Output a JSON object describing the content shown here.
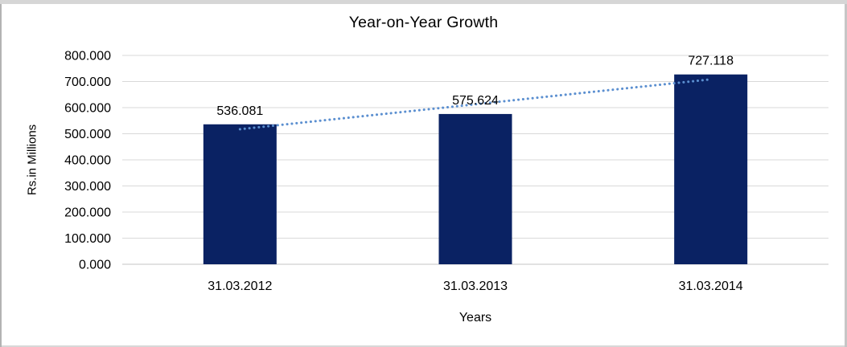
{
  "window": {
    "background": "#FFFFFF",
    "frame_color": "#C9C9C9"
  },
  "chart_data": {
    "type": "bar",
    "title": "Year-on-Year Growth",
    "categories": [
      "31.03.2012",
      "31.03.2013",
      "31.03.2014"
    ],
    "values": [
      536.081,
      575.624,
      727.118
    ],
    "data_labels": [
      "536.081",
      "575.624",
      "727.118"
    ],
    "xlabel": "Years",
    "ylabel": "Rs.in Millions",
    "ylim": [
      0,
      800
    ],
    "ytick_step": 100,
    "ytick_labels": [
      "0.000",
      "100.000",
      "200.000",
      "300.000",
      "400.000",
      "500.000",
      "600.000",
      "700.000",
      "800.000"
    ],
    "grid": true,
    "legend": false,
    "bar_color": "#0A2263",
    "gridline_color": "#D9D9D9",
    "axisline_color": "#C6C6C6",
    "label_color": "#000000",
    "trendline": {
      "style": "dotted",
      "color": "#5B8FD0",
      "start_value": 517.4,
      "end_value": 708.4
    }
  }
}
